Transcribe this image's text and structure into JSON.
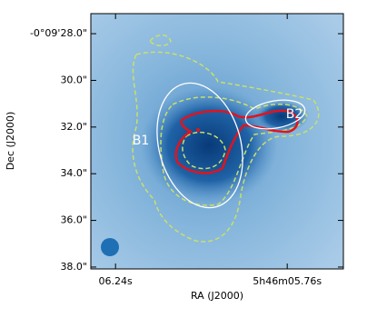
{
  "chart_data": {
    "type": "image",
    "xlabel": "RA (J2000)",
    "ylabel": "Dec (J2000)",
    "xlim": [
      6.309,
      5.603
    ],
    "xticks": [
      {
        "value": 6.24,
        "label": "06.24s"
      },
      {
        "value": 5.76,
        "label": "5h46m05.76s"
      }
    ],
    "ylim": [
      38.08,
      27.14
    ],
    "yticks": [
      {
        "value": 28,
        "label": "-0°09'28.0\""
      },
      {
        "value": 30,
        "label": "30.0\""
      },
      {
        "value": 32,
        "label": "32.0\""
      },
      {
        "value": 34,
        "label": "34.0\""
      },
      {
        "value": 36,
        "label": "36.0\""
      },
      {
        "value": 38,
        "label": "38.0\""
      }
    ],
    "annotations": [
      "B1",
      "B2"
    ]
  }
}
